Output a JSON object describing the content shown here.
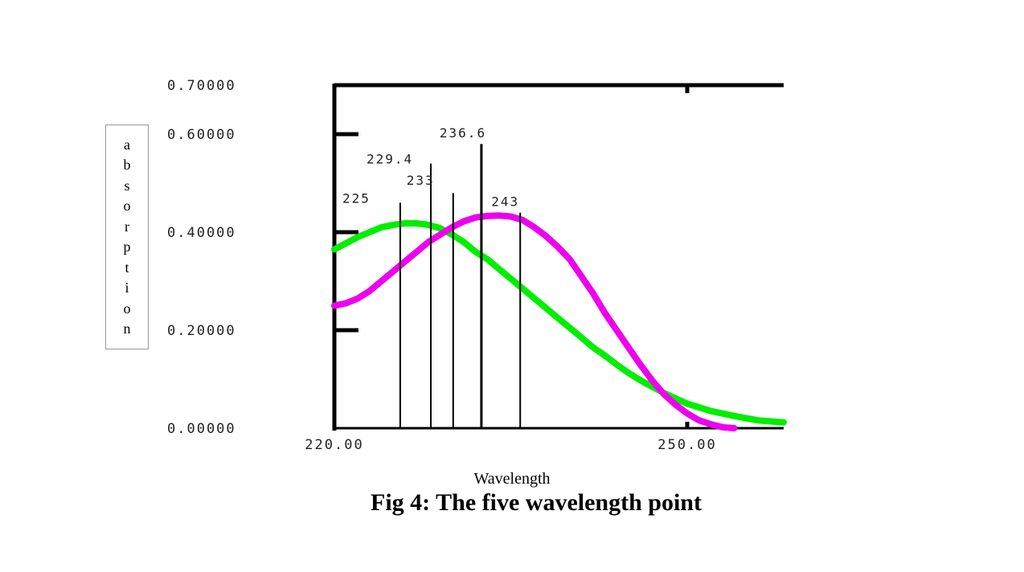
{
  "caption": "Fig 4: The five wavelength point",
  "chart_data": {
    "type": "line",
    "xlabel": "Wavelength",
    "ylabel": "absorption",
    "xlim": [
      220,
      258.2
    ],
    "ylim": [
      0,
      0.7
    ],
    "x_ticks": [
      "220.00",
      "250.00"
    ],
    "y_ticks": [
      "0.70000",
      "0.60000",
      "0.40000",
      "0.20000",
      "0.00000"
    ],
    "grid": false,
    "series": [
      {
        "color": "#00ee00",
        "x": [
          220,
          222,
          224,
          225,
          226,
          227,
          228,
          229,
          230,
          231,
          232,
          233,
          234,
          235,
          236,
          237,
          238,
          239,
          240,
          241,
          242,
          243,
          244,
          245,
          246,
          248,
          250,
          252,
          254,
          256,
          258.2
        ],
        "y": [
          0.365,
          0.39,
          0.41,
          0.415,
          0.418,
          0.418,
          0.415,
          0.408,
          0.395,
          0.38,
          0.36,
          0.345,
          0.325,
          0.305,
          0.285,
          0.265,
          0.245,
          0.225,
          0.205,
          0.185,
          0.165,
          0.148,
          0.13,
          0.113,
          0.098,
          0.072,
          0.05,
          0.035,
          0.025,
          0.016,
          0.012
        ]
      },
      {
        "color": "#ee00ee",
        "x": [
          220,
          221,
          222,
          223,
          224,
          225,
          226,
          227,
          228,
          229,
          230,
          231,
          232,
          233,
          234,
          235,
          236,
          237,
          238,
          239,
          240,
          241,
          242,
          243,
          244,
          245,
          246,
          247,
          248,
          249,
          250,
          251,
          252,
          253,
          254
        ],
        "y": [
          0.25,
          0.255,
          0.265,
          0.28,
          0.3,
          0.32,
          0.34,
          0.36,
          0.38,
          0.395,
          0.41,
          0.422,
          0.43,
          0.433,
          0.434,
          0.432,
          0.425,
          0.41,
          0.392,
          0.37,
          0.345,
          0.31,
          0.275,
          0.235,
          0.2,
          0.165,
          0.13,
          0.098,
          0.07,
          0.048,
          0.03,
          0.016,
          0.008,
          0.002,
          0.0
        ]
      }
    ],
    "markers": [
      {
        "label": "225",
        "x": 225.6,
        "y": 0.46
      },
      {
        "label": "229.4",
        "x": 228.2,
        "y": 0.54
      },
      {
        "label": "233",
        "x": 230.1,
        "y": 0.48
      },
      {
        "label": "236.6",
        "x": 232.5,
        "y": 0.58
      },
      {
        "label": "243",
        "x": 235.8,
        "y": 0.44
      }
    ]
  }
}
